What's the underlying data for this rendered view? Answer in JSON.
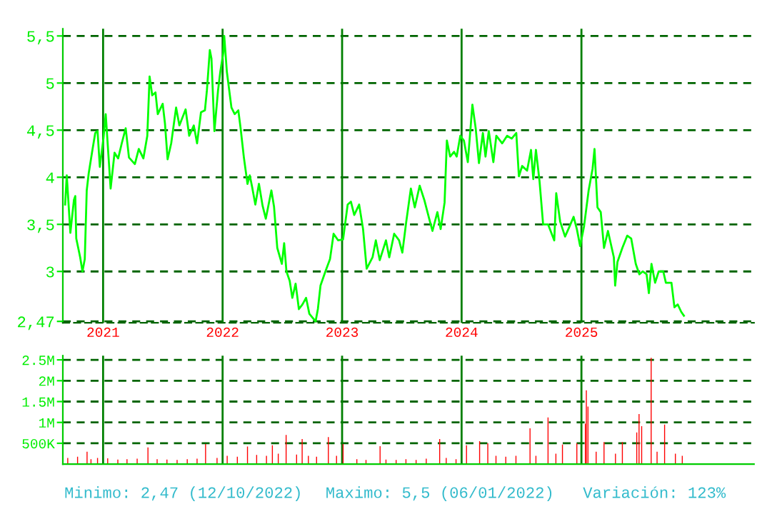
{
  "chart_data": [
    {
      "type": "line",
      "x": [
        "2020-09-07",
        "2020-09-12",
        "2020-09-23",
        "2020-10-04",
        "2020-10-08",
        "2020-10-11",
        "2020-10-23",
        "2020-10-30",
        "2020-11-06",
        "2020-11-12",
        "2020-11-18",
        "2020-11-28",
        "2020-12-08",
        "2020-12-15",
        "2020-12-22",
        "2021-01-02",
        "2021-01-09",
        "2021-01-24",
        "2021-02-05",
        "2021-02-16",
        "2021-02-27",
        "2021-03-11",
        "2021-03-21",
        "2021-04-08",
        "2021-04-20",
        "2021-05-04",
        "2021-05-16",
        "2021-05-23",
        "2021-05-31",
        "2021-06-10",
        "2021-06-17",
        "2021-07-02",
        "2021-07-09",
        "2021-07-17",
        "2021-07-28",
        "2021-08-12",
        "2021-08-22",
        "2021-09-10",
        "2021-09-21",
        "2021-10-05",
        "2021-10-15",
        "2021-10-27",
        "2021-11-08",
        "2021-11-14",
        "2021-11-23",
        "2021-11-28",
        "2021-12-07",
        "2021-12-18",
        "2021-12-25",
        "2022-01-03",
        "2022-01-06",
        "2022-01-14",
        "2022-01-28",
        "2022-02-07",
        "2022-02-18",
        "2022-02-25",
        "2022-03-07",
        "2022-03-18",
        "2022-03-25",
        "2022-04-01",
        "2022-04-11",
        "2022-04-22",
        "2022-05-03",
        "2022-05-13",
        "2022-05-30",
        "2022-06-07",
        "2022-06-17",
        "2022-07-01",
        "2022-07-08",
        "2022-07-15",
        "2022-07-25",
        "2022-08-02",
        "2022-08-12",
        "2022-08-22",
        "2022-09-02",
        "2022-09-13",
        "2022-09-23",
        "2022-10-12",
        "2022-10-19",
        "2022-10-27",
        "2022-11-11",
        "2022-11-25",
        "2022-12-06",
        "2022-12-20",
        "2023-01-04",
        "2023-01-18",
        "2023-01-28",
        "2023-02-07",
        "2023-02-22",
        "2023-03-06",
        "2023-03-17",
        "2023-04-04",
        "2023-04-14",
        "2023-04-26",
        "2023-05-15",
        "2023-05-25",
        "2023-06-09",
        "2023-06-24",
        "2023-07-04",
        "2023-07-16",
        "2023-07-30",
        "2023-08-11",
        "2023-08-26",
        "2023-09-09",
        "2023-09-24",
        "2023-10-04",
        "2023-10-19",
        "2023-10-29",
        "2023-11-10",
        "2023-11-17",
        "2023-11-27",
        "2023-12-09",
        "2023-12-17",
        "2023-12-28",
        "2024-01-08",
        "2024-01-20",
        "2024-02-03",
        "2024-02-13",
        "2024-02-23",
        "2024-03-06",
        "2024-03-14",
        "2024-03-24",
        "2024-04-07",
        "2024-04-16",
        "2024-05-04",
        "2024-05-19",
        "2024-06-02",
        "2024-06-16",
        "2024-06-24",
        "2024-07-04",
        "2024-07-19",
        "2024-07-31",
        "2024-08-07",
        "2024-08-15",
        "2024-08-26",
        "2024-09-06",
        "2024-09-21",
        "2024-10-10",
        "2024-10-16",
        "2024-10-28",
        "2024-11-12",
        "2024-11-26",
        "2024-12-08",
        "2024-12-18",
        "2024-12-28",
        "2025-01-09",
        "2025-01-23",
        "2025-02-04",
        "2025-02-10",
        "2025-02-19",
        "2025-03-01",
        "2025-03-11",
        "2025-03-23",
        "2025-04-10",
        "2025-04-14",
        "2025-04-21",
        "2025-05-06",
        "2025-05-21",
        "2025-06-02",
        "2025-06-16",
        "2025-06-27",
        "2025-07-07",
        "2025-07-19",
        "2025-07-26",
        "2025-08-03",
        "2025-08-14",
        "2025-08-25",
        "2025-09-08",
        "2025-09-16",
        "2025-10-03",
        "2025-10-12",
        "2025-10-22",
        "2025-11-02",
        "2025-11-10"
      ],
      "series": [
        {
          "color": "#00ff00",
          "values": [
            3.71,
            4.02,
            3.41,
            3.76,
            3.8,
            3.35,
            3.15,
            3.0,
            3.13,
            3.86,
            4.04,
            4.26,
            4.47,
            4.49,
            4.11,
            4.41,
            4.67,
            3.88,
            4.26,
            4.2,
            4.36,
            4.52,
            4.21,
            4.14,
            4.3,
            4.2,
            4.44,
            5.07,
            4.87,
            4.9,
            4.67,
            4.78,
            4.57,
            4.19,
            4.36,
            4.74,
            4.55,
            4.72,
            4.44,
            4.55,
            4.36,
            4.69,
            4.71,
            4.92,
            5.35,
            5.26,
            4.49,
            4.92,
            5.12,
            5.32,
            5.5,
            5.12,
            4.74,
            4.67,
            4.71,
            4.52,
            4.21,
            3.93,
            4.02,
            3.9,
            3.71,
            3.93,
            3.7,
            3.56,
            3.86,
            3.69,
            3.25,
            3.08,
            3.3,
            3.0,
            2.9,
            2.72,
            2.87,
            2.6,
            2.65,
            2.72,
            2.55,
            2.47,
            2.6,
            2.85,
            3.0,
            3.13,
            3.4,
            3.33,
            3.34,
            3.71,
            3.74,
            3.6,
            3.71,
            3.45,
            3.03,
            3.15,
            3.33,
            3.12,
            3.33,
            3.15,
            3.4,
            3.33,
            3.2,
            3.53,
            3.88,
            3.68,
            3.91,
            3.76,
            3.56,
            3.43,
            3.63,
            3.45,
            3.73,
            4.39,
            4.22,
            4.27,
            4.22,
            4.44,
            4.39,
            4.16,
            4.77,
            4.52,
            4.15,
            4.47,
            4.22,
            4.49,
            4.16,
            4.44,
            4.36,
            4.44,
            4.41,
            4.47,
            4.01,
            4.12,
            4.07,
            4.29,
            3.98,
            4.29,
            3.96,
            3.5,
            3.5,
            3.33,
            3.83,
            3.53,
            3.37,
            3.48,
            3.58,
            3.45,
            3.27,
            3.48,
            3.86,
            4.09,
            4.3,
            3.68,
            3.63,
            3.25,
            3.43,
            3.15,
            2.85,
            3.1,
            3.25,
            3.38,
            3.35,
            3.08,
            2.97,
            3.0,
            2.97,
            2.77,
            3.08,
            2.88,
            3.0,
            3.0,
            2.88,
            2.88,
            2.62,
            2.65,
            2.57,
            2.53
          ]
        }
      ],
      "xlim": [
        "2020-08-31",
        "2026-06-12"
      ],
      "xticks": [
        {
          "value": "2021-01-01",
          "label": "2021"
        },
        {
          "value": "2022-01-01",
          "label": "2022"
        },
        {
          "value": "2023-01-01",
          "label": "2023"
        },
        {
          "value": "2024-01-01",
          "label": "2024"
        },
        {
          "value": "2025-01-01",
          "label": "2025"
        }
      ],
      "ylim": [
        2.455,
        5.576
      ],
      "yticks": [
        {
          "value": 2.47,
          "label": "2,47"
        },
        3,
        {
          "value": 3.5,
          "label": "3,5"
        },
        4,
        {
          "value": 4.5,
          "label": "4,5"
        },
        5,
        {
          "value": 5.5,
          "label": "5,5"
        }
      ],
      "grid": true,
      "line_style": "solid",
      "marker": "none"
    },
    {
      "type": "bar",
      "x": [
        "2020-09-15",
        "2020-10-15",
        "2020-11-13",
        "2020-11-25",
        "2020-12-15",
        "2021-01-15",
        "2021-02-15",
        "2021-03-15",
        "2021-04-15",
        "2021-05-18",
        "2021-06-15",
        "2021-07-15",
        "2021-08-15",
        "2021-09-15",
        "2021-10-15",
        "2021-11-10",
        "2021-12-15",
        "2022-01-15",
        "2022-02-15",
        "2022-03-18",
        "2022-04-15",
        "2022-05-15",
        "2022-06-02",
        "2022-06-20",
        "2022-07-14",
        "2022-08-15",
        "2022-09-01",
        "2022-09-20",
        "2022-10-15",
        "2022-11-20",
        "2022-12-15",
        "2023-01-04",
        "2023-02-15",
        "2023-03-15",
        "2023-04-27",
        "2023-05-15",
        "2023-06-15",
        "2023-07-15",
        "2023-08-15",
        "2023-09-15",
        "2023-10-26",
        "2023-11-15",
        "2023-12-15",
        "2024-01-16",
        "2024-02-25",
        "2024-03-21",
        "2024-04-15",
        "2024-05-15",
        "2024-06-15",
        "2024-07-28",
        "2024-08-15",
        "2024-09-21",
        "2024-10-15",
        "2024-11-04",
        "2024-12-18",
        "2025-01-13",
        "2025-01-16",
        "2025-01-21",
        "2025-02-15",
        "2025-03-11",
        "2025-04-15",
        "2025-05-06",
        "2025-06-19",
        "2025-06-26",
        "2025-07-04",
        "2025-08-02",
        "2025-08-20",
        "2025-09-12",
        "2025-10-15",
        "2025-11-05"
      ],
      "series": [
        {
          "color": "#ff0000",
          "values": [
            150000,
            180000,
            300000,
            120000,
            150000,
            140000,
            110000,
            120000,
            130000,
            400000,
            120000,
            110000,
            100000,
            120000,
            130000,
            480000,
            150000,
            200000,
            180000,
            420000,
            220000,
            200000,
            450000,
            250000,
            700000,
            230000,
            600000,
            200000,
            180000,
            650000,
            200000,
            480000,
            120000,
            100000,
            430000,
            110000,
            100000,
            120000,
            100000,
            130000,
            600000,
            150000,
            120000,
            450000,
            550000,
            500000,
            200000,
            180000,
            200000,
            860000,
            200000,
            1120000,
            250000,
            470000,
            500000,
            970000,
            1770000,
            1380000,
            300000,
            530000,
            250000,
            530000,
            760000,
            1200000,
            910000,
            2550000,
            300000,
            950000,
            250000,
            200000
          ]
        }
      ],
      "xlim": [
        "2020-08-31",
        "2026-06-12"
      ],
      "xticks": [
        {
          "value": "2021-01-01",
          "label": null
        },
        {
          "value": "2022-01-01",
          "label": null
        },
        {
          "value": "2023-01-01",
          "label": null
        },
        {
          "value": "2024-01-01",
          "label": null
        },
        {
          "value": "2025-01-01",
          "label": null
        }
      ],
      "ylim": [
        0,
        2600000
      ],
      "yticks": [
        {
          "value": 500000,
          "label": "500K"
        },
        {
          "value": 1000000,
          "label": "1M"
        },
        {
          "value": 1500000,
          "label": "1.5M"
        },
        {
          "value": 2000000,
          "label": "2M"
        },
        {
          "value": 2500000,
          "label": "2.5M"
        }
      ],
      "grid": true,
      "tick_labels": "y",
      "annotations": [
        "Minimo: 2,47 (12/10/2022)",
        "Maximo: 5,5 (06/01/2022)",
        "Variación: 123%"
      ]
    }
  ]
}
